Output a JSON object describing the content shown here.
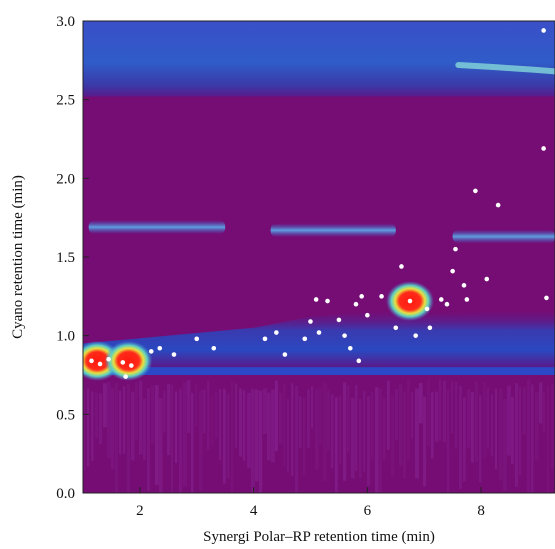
{
  "chart_data": {
    "type": "heatmap",
    "title": "",
    "xlabel": "Synergi Polar–RP retention time (min)",
    "ylabel": "Cyano retention time (min)",
    "xlim": [
      1.0,
      9.3
    ],
    "ylim": [
      0.0,
      3.0
    ],
    "x_ticks": [
      2,
      4,
      6,
      8
    ],
    "x_tick_labels": [
      "2",
      "4",
      "6",
      "8"
    ],
    "y_ticks": [
      0.0,
      0.5,
      1.0,
      1.5,
      2.0,
      2.5,
      3.0
    ],
    "y_tick_labels": [
      "0.0",
      "0.5",
      "1.0",
      "1.5",
      "2.0",
      "2.5",
      "3.0"
    ],
    "grid": false,
    "colormap": [
      "#5a0e6e",
      "#2a3fb8",
      "#3f86d6",
      "#5fd0c0",
      "#c9e85a",
      "#ff2a1a"
    ],
    "background_color": "#760d74",
    "hot_spots": [
      {
        "x": 1.25,
        "y": 0.84,
        "level": "high"
      },
      {
        "x": 1.8,
        "y": 0.84,
        "level": "high"
      },
      {
        "x": 6.75,
        "y": 1.22,
        "level": "high"
      }
    ],
    "ridges": [
      {
        "x_start": 1.1,
        "x_end": 3.5,
        "y": 1.69,
        "label": ""
      },
      {
        "x_start": 4.3,
        "x_end": 6.5,
        "y": 1.67,
        "label": ""
      },
      {
        "x_start": 7.5,
        "x_end": 9.3,
        "y": 1.63,
        "label": ""
      }
    ],
    "points": [
      {
        "x": 1.15,
        "y": 0.84
      },
      {
        "x": 1.3,
        "y": 0.82
      },
      {
        "x": 1.45,
        "y": 0.85
      },
      {
        "x": 1.7,
        "y": 0.83
      },
      {
        "x": 1.85,
        "y": 0.81
      },
      {
        "x": 1.75,
        "y": 0.74
      },
      {
        "x": 2.2,
        "y": 0.9
      },
      {
        "x": 2.35,
        "y": 0.92
      },
      {
        "x": 2.6,
        "y": 0.88
      },
      {
        "x": 3.0,
        "y": 0.98
      },
      {
        "x": 3.3,
        "y": 0.92
      },
      {
        "x": 4.2,
        "y": 0.98
      },
      {
        "x": 4.4,
        "y": 1.02
      },
      {
        "x": 4.55,
        "y": 0.88
      },
      {
        "x": 4.9,
        "y": 0.98
      },
      {
        "x": 5.0,
        "y": 1.09
      },
      {
        "x": 5.1,
        "y": 1.23
      },
      {
        "x": 5.15,
        "y": 1.02
      },
      {
        "x": 5.3,
        "y": 1.22
      },
      {
        "x": 5.5,
        "y": 1.1
      },
      {
        "x": 5.6,
        "y": 1.0
      },
      {
        "x": 5.7,
        "y": 0.92
      },
      {
        "x": 5.8,
        "y": 1.2
      },
      {
        "x": 5.9,
        "y": 1.25
      },
      {
        "x": 6.0,
        "y": 1.13
      },
      {
        "x": 5.85,
        "y": 0.84
      },
      {
        "x": 6.25,
        "y": 1.25
      },
      {
        "x": 6.5,
        "y": 1.05
      },
      {
        "x": 6.6,
        "y": 1.44
      },
      {
        "x": 6.75,
        "y": 1.22
      },
      {
        "x": 6.85,
        "y": 1.0
      },
      {
        "x": 7.05,
        "y": 1.17
      },
      {
        "x": 7.1,
        "y": 1.05
      },
      {
        "x": 7.3,
        "y": 1.23
      },
      {
        "x": 7.4,
        "y": 1.2
      },
      {
        "x": 7.5,
        "y": 1.41
      },
      {
        "x": 7.55,
        "y": 1.55
      },
      {
        "x": 7.7,
        "y": 1.32
      },
      {
        "x": 7.75,
        "y": 1.23
      },
      {
        "x": 7.9,
        "y": 1.92
      },
      {
        "x": 8.1,
        "y": 1.36
      },
      {
        "x": 8.3,
        "y": 1.83
      },
      {
        "x": 9.1,
        "y": 2.94
      },
      {
        "x": 9.1,
        "y": 2.19
      },
      {
        "x": 9.15,
        "y": 1.24
      }
    ]
  }
}
